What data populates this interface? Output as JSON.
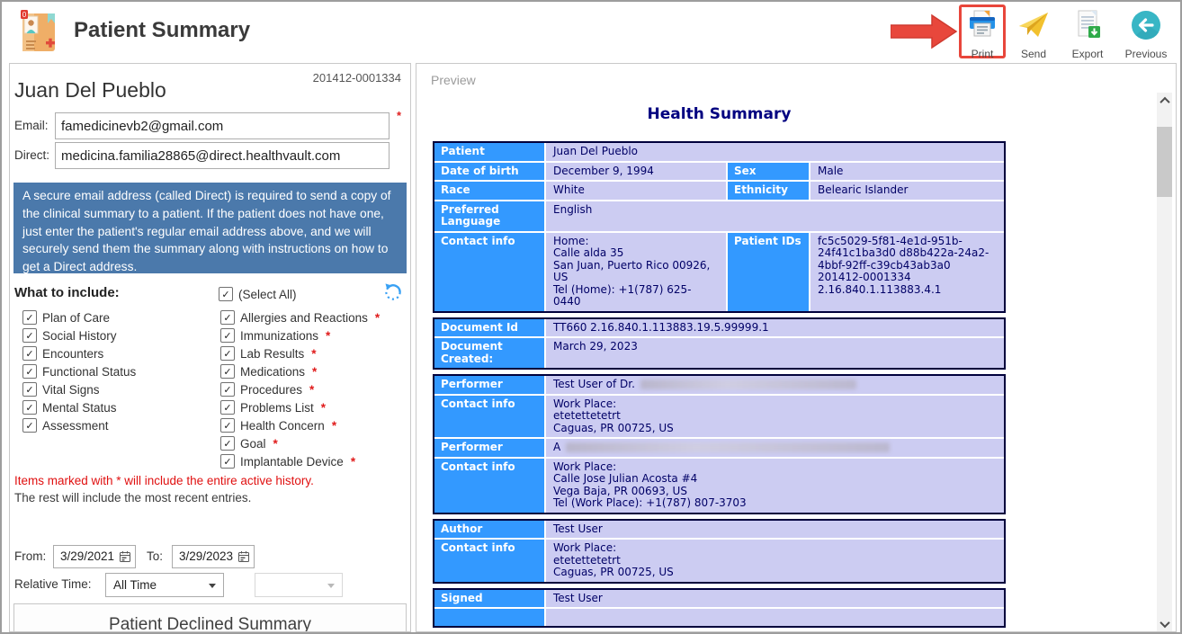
{
  "header": {
    "title": "Patient Summary",
    "icon_badge": "0"
  },
  "toolbar": {
    "buttons": [
      {
        "id": "print",
        "label": "Print"
      },
      {
        "id": "send",
        "label": "Send"
      },
      {
        "id": "export",
        "label": "Export"
      },
      {
        "id": "previous",
        "label": "Previous"
      }
    ]
  },
  "colors": {
    "label_cell_blue": "#3399ff",
    "value_cell_lavender": "#ccccf2",
    "section_border_navy": "#00003c",
    "info_box_blue": "#4b79ab",
    "highlight_red": "#e8463b",
    "required_red": "#e01010"
  },
  "patient_panel": {
    "record_id": "201412-0001334",
    "name": "Juan Del Pueblo",
    "email_label": "Email:",
    "email_value": "famedicinevb2@gmail.com",
    "email_required_marker": "*",
    "direct_label": "Direct:",
    "direct_value": "medicina.familia28865@direct.healthvault.com",
    "direct_note": "A secure email address (called Direct) is required to send a copy of the clinical summary to a patient. If the patient does not have one, just enter the patient's regular email address above, and we will securely send them the summary along with instructions on how to get a Direct address.",
    "include": {
      "heading": "What to include:",
      "select_all_label": "(Select All)",
      "all_checked": true,
      "left_items": [
        {
          "label": "Plan of Care",
          "checked": true
        },
        {
          "label": "Social History",
          "checked": true
        },
        {
          "label": "Encounters",
          "checked": true
        },
        {
          "label": "Functional Status",
          "checked": true
        },
        {
          "label": "Vital Signs",
          "checked": true
        },
        {
          "label": "Mental Status",
          "checked": true
        },
        {
          "label": "Assessment",
          "checked": true
        }
      ],
      "right_items": [
        {
          "label": "Allergies and Reactions",
          "required": true,
          "checked": true
        },
        {
          "label": "Immunizations",
          "required": true,
          "checked": true
        },
        {
          "label": "Lab Results",
          "required": true,
          "checked": true
        },
        {
          "label": "Medications",
          "required": true,
          "checked": true
        },
        {
          "label": "Procedures",
          "required": true,
          "checked": true
        },
        {
          "label": "Problems List",
          "required": true,
          "checked": true
        },
        {
          "label": "Health Concern",
          "required": true,
          "checked": true
        },
        {
          "label": "Goal",
          "required": true,
          "checked": true
        },
        {
          "label": "Implantable Device",
          "required": true,
          "checked": true
        }
      ],
      "note_required": "Items marked with * will include the entire active history.",
      "note_rest": "The rest will include the most recent entries."
    },
    "date_range": {
      "from_label": "From:",
      "from_value": "3/29/2021",
      "to_label": "To:",
      "to_value": "3/29/2023",
      "relative_label": "Relative Time:",
      "relative_value": "All Time"
    },
    "declined_button_label": "Patient Declined Summary"
  },
  "preview_panel": {
    "label": "Preview",
    "doc_title": "Health Summary",
    "sections": [
      {
        "rows": [
          {
            "cells": [
              {
                "t": "h",
                "text": "Patient"
              },
              {
                "t": "v",
                "text": "Juan Del Pueblo",
                "span": 3
              }
            ]
          },
          {
            "cells": [
              {
                "t": "h",
                "text": "Date of birth"
              },
              {
                "t": "v",
                "text": "December 9, 1994"
              },
              {
                "t": "h",
                "text": "Sex"
              },
              {
                "t": "v",
                "text": "Male"
              }
            ]
          },
          {
            "cells": [
              {
                "t": "h",
                "text": "Race"
              },
              {
                "t": "v",
                "text": "White"
              },
              {
                "t": "h",
                "text": "Ethnicity"
              },
              {
                "t": "v",
                "text": "Belearic Islander"
              }
            ]
          },
          {
            "cells": [
              {
                "t": "h",
                "text": "Preferred Language"
              },
              {
                "t": "v",
                "text": "English",
                "span": 3
              }
            ]
          },
          {
            "cells": [
              {
                "t": "h",
                "text": "Contact info"
              },
              {
                "t": "v",
                "lines": [
                  "Home:",
                  "Calle alda 35",
                  "San Juan, Puerto Rico 00926, US",
                  "Tel (Home): +1(787) 625-0440"
                ]
              },
              {
                "t": "h",
                "text": "Patient IDs"
              },
              {
                "t": "v",
                "lines": [
                  "fc5c5029-5f81-4e1d-951b-24f41c1ba3d0 d88b422a-24a2-4bbf-92ff-c39cb43ab3a0",
                  "201412-0001334",
                  "2.16.840.1.113883.4.1"
                ]
              }
            ]
          }
        ]
      },
      {
        "rows": [
          {
            "cells": [
              {
                "t": "h",
                "text": "Document Id"
              },
              {
                "t": "v",
                "text": "TT660 2.16.840.1.113883.19.5.99999.1",
                "span": 3
              }
            ]
          },
          {
            "cells": [
              {
                "t": "h",
                "text": "Document Created:"
              },
              {
                "t": "v",
                "text": "March 29, 2023",
                "span": 3
              }
            ]
          }
        ]
      },
      {
        "rows": [
          {
            "cells": [
              {
                "t": "h",
                "text": "Performer"
              },
              {
                "t": "v",
                "text": "Test User of Dr.",
                "span": 3,
                "redacted": 240
              }
            ]
          },
          {
            "cells": [
              {
                "t": "h",
                "text": "Contact info"
              },
              {
                "t": "v",
                "lines": [
                  "Work Place:",
                  "etetettetetrt",
                  "Caguas, PR 00725, US"
                ],
                "span": 3
              }
            ]
          },
          {
            "cells": [
              {
                "t": "h",
                "text": "Performer"
              },
              {
                "t": "v",
                "text": "A",
                "span": 3,
                "redacted": 360
              }
            ]
          },
          {
            "cells": [
              {
                "t": "h",
                "text": "Contact info"
              },
              {
                "t": "v",
                "lines": [
                  "Work Place:",
                  "Calle Jose Julian Acosta #4",
                  "Vega Baja, PR 00693, US",
                  "Tel (Work Place): +1(787) 807-3703"
                ],
                "span": 3
              }
            ]
          }
        ]
      },
      {
        "rows": [
          {
            "cells": [
              {
                "t": "h",
                "text": "Author"
              },
              {
                "t": "v",
                "text": "Test User",
                "span": 3
              }
            ]
          },
          {
            "cells": [
              {
                "t": "h",
                "text": "Contact info"
              },
              {
                "t": "v",
                "lines": [
                  "Work Place:",
                  "etetettetetrt",
                  "Caguas, PR 00725, US"
                ],
                "span": 3
              }
            ]
          }
        ]
      },
      {
        "rows": [
          {
            "cells": [
              {
                "t": "h",
                "text": "Signed"
              },
              {
                "t": "v",
                "text": "Test User",
                "span": 3
              }
            ]
          },
          {
            "cells": [
              {
                "t": "h",
                "text": ""
              },
              {
                "t": "v",
                "text": "",
                "span": 3
              }
            ]
          }
        ]
      }
    ]
  }
}
